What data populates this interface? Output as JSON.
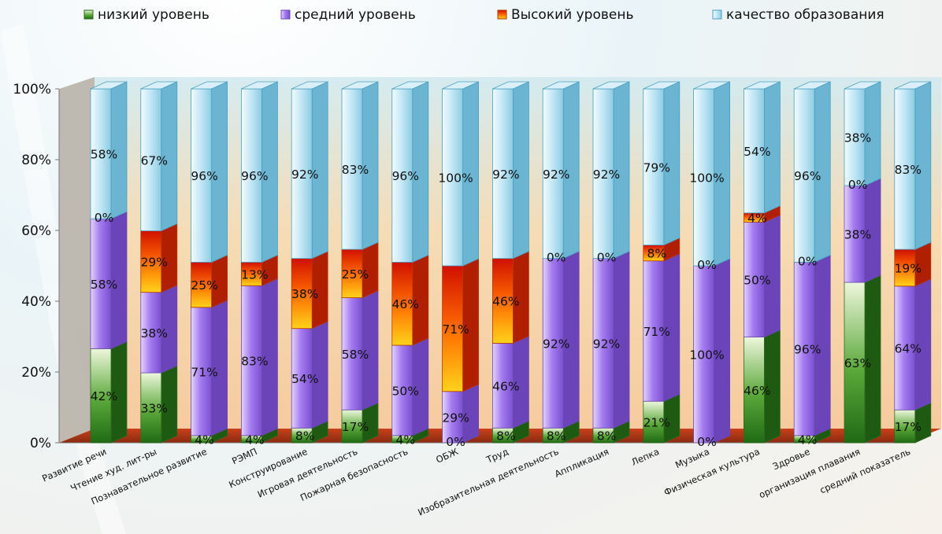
{
  "chart_data": {
    "type": "bar",
    "stacked": "percent",
    "categories": [
      "Развитие речи",
      "Чтение худ. лит-ры",
      "Познавательное развитие",
      "РЭМП",
      "Конструирование",
      "Игровая деятельность",
      "Пожарная безопасность",
      "ОБЖ",
      "Труд",
      "Изобразительная деятельность",
      "Аппликация",
      "Лепка",
      "Музыка",
      "Физическая культура",
      "Здровье",
      "организация плавания",
      "средний показатель"
    ],
    "series": [
      {
        "name": "низкий уровень",
        "color": "#3f8f2a",
        "values": [
          42,
          33,
          4,
          4,
          8,
          17,
          4,
          0,
          8,
          8,
          8,
          21,
          0,
          46,
          4,
          63,
          17
        ]
      },
      {
        "name": "средний уровень",
        "color": "#9b6ee6",
        "values": [
          58,
          38,
          71,
          83,
          54,
          58,
          50,
          29,
          46,
          92,
          92,
          71,
          100,
          50,
          96,
          38,
          64
        ]
      },
      {
        "name": "Высокий уровень",
        "color": "#f05a00",
        "values": [
          0,
          29,
          25,
          13,
          38,
          25,
          46,
          71,
          46,
          0,
          0,
          8,
          0,
          4,
          0,
          0,
          19
        ]
      },
      {
        "name": "качество образования",
        "color": "#8fd0e8",
        "values": [
          58,
          67,
          96,
          96,
          92,
          83,
          96,
          100,
          92,
          92,
          92,
          79,
          100,
          54,
          96,
          38,
          83
        ]
      }
    ],
    "y_ticks": [
      "0%",
      "20%",
      "40%",
      "60%",
      "80%",
      "100%"
    ],
    "ylim": [
      0,
      100
    ],
    "legend_position": "top",
    "grid": false
  }
}
